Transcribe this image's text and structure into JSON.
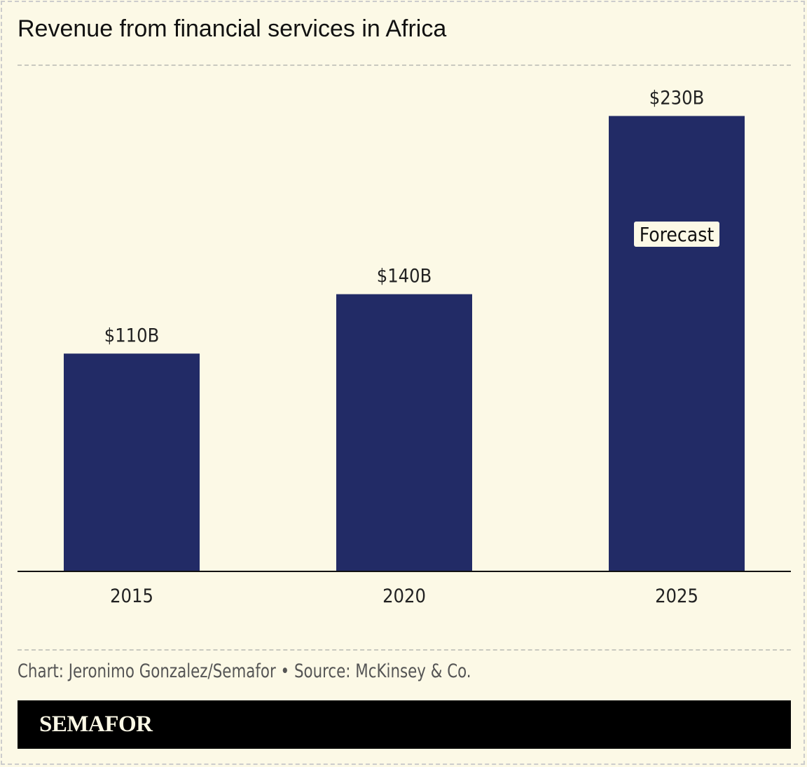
{
  "title": "Revenue from financial services in Africa",
  "credit": "Chart: Jeronimo Gonzalez/Semafor • Source: McKinsey & Co.",
  "brand": "SEMAFOR",
  "colors": {
    "bar": "#222b66",
    "background": "#fcf9e6",
    "annotation_bg": "#fcf9e6"
  },
  "chart_data": {
    "type": "bar",
    "title": "Revenue from financial services in Africa",
    "categories": [
      "2015",
      "2020",
      "2025"
    ],
    "values": [
      110,
      140,
      230
    ],
    "data_labels": [
      "$110B",
      "$140B",
      "$230B"
    ],
    "unit": "billion USD",
    "annotations": [
      {
        "category": "2025",
        "text": "Forecast"
      }
    ],
    "ylim": [
      0,
      256
    ],
    "grid": false,
    "xlabel": "",
    "ylabel": ""
  }
}
